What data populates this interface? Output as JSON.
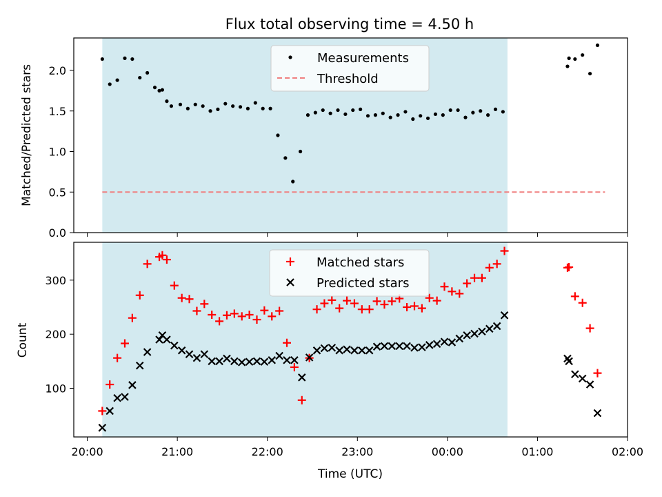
{
  "title": "Flux total observing time = 4.50 h",
  "xlabel": "Time (UTC)",
  "x_tick_labels": [
    "20:00",
    "21:00",
    "22:00",
    "23:00",
    "00:00",
    "01:00",
    "02:00"
  ],
  "colors": {
    "shade": "#d3eaf0",
    "measurement": "#000000",
    "threshold": "#f08080",
    "matched": "#ff0000",
    "predicted": "#000000"
  },
  "chart_data": [
    {
      "type": "scatter",
      "ylabel": "Matched/Predicted stars",
      "ylim": [
        0,
        2.4
      ],
      "y_ticks": [
        0.0,
        0.5,
        1.0,
        1.5,
        2.0
      ],
      "y_tick_labels": [
        "0.0",
        "0.5",
        "1.0",
        "1.5",
        "2.0"
      ],
      "xlim": [
        "19:51",
        "02:00"
      ],
      "shaded_interval": [
        "20:10",
        "00:40"
      ],
      "legend_position": "upper center",
      "legend": [
        "Measurements",
        "Threshold"
      ],
      "threshold": {
        "name": "Threshold",
        "value": 0.5,
        "x_range": [
          "20:10",
          "01:45"
        ]
      },
      "series": [
        {
          "name": "Measurements",
          "x": [
            "20:10",
            "20:15",
            "20:20",
            "20:25",
            "20:30",
            "20:35",
            "20:40",
            "20:45",
            "20:48",
            "20:50",
            "20:53",
            "20:56",
            "21:02",
            "21:07",
            "21:12",
            "21:17",
            "21:22",
            "21:27",
            "21:32",
            "21:37",
            "21:42",
            "21:47",
            "21:52",
            "21:57",
            "22:02",
            "22:07",
            "22:12",
            "22:17",
            "22:22",
            "22:27",
            "22:32",
            "22:37",
            "22:42",
            "22:47",
            "22:52",
            "22:57",
            "23:02",
            "23:07",
            "23:12",
            "23:17",
            "23:22",
            "23:27",
            "23:32",
            "23:37",
            "23:42",
            "23:47",
            "23:52",
            "23:57",
            "00:02",
            "00:07",
            "00:12",
            "00:17",
            "00:22",
            "00:27",
            "00:32",
            "00:37",
            "01:20",
            "01:21",
            "01:25",
            "01:30",
            "01:35",
            "01:40"
          ],
          "y": [
            2.14,
            1.83,
            1.88,
            2.15,
            2.14,
            1.91,
            1.97,
            1.79,
            1.75,
            1.76,
            1.62,
            1.56,
            1.58,
            1.53,
            1.58,
            1.56,
            1.5,
            1.52,
            1.59,
            1.56,
            1.55,
            1.53,
            1.6,
            1.53,
            1.53,
            1.2,
            0.92,
            0.63,
            1.0,
            1.45,
            1.48,
            1.51,
            1.47,
            1.51,
            1.46,
            1.51,
            1.52,
            1.44,
            1.45,
            1.47,
            1.42,
            1.45,
            1.49,
            1.4,
            1.44,
            1.41,
            1.46,
            1.45,
            1.51,
            1.51,
            1.42,
            1.48,
            1.5,
            1.45,
            1.52,
            1.49,
            2.05,
            2.15,
            2.14,
            2.19,
            1.96,
            2.31
          ]
        }
      ]
    },
    {
      "type": "scatter",
      "ylabel": "Count",
      "ylim": [
        10,
        370
      ],
      "y_ticks": [
        100,
        200,
        300
      ],
      "y_tick_labels": [
        "100",
        "200",
        "300"
      ],
      "xlim": [
        "19:51",
        "02:00"
      ],
      "shaded_interval": [
        "20:10",
        "00:40"
      ],
      "legend_position": "upper center",
      "legend": [
        "Matched stars",
        "Predicted stars"
      ],
      "series": [
        {
          "name": "Matched stars",
          "marker": "+",
          "x": [
            "20:10",
            "20:15",
            "20:20",
            "20:25",
            "20:30",
            "20:35",
            "20:40",
            "20:48",
            "20:50",
            "20:53",
            "20:58",
            "21:03",
            "21:08",
            "21:13",
            "21:18",
            "21:23",
            "21:28",
            "21:33",
            "21:38",
            "21:43",
            "21:48",
            "21:53",
            "21:58",
            "22:03",
            "22:08",
            "22:13",
            "22:18",
            "22:23",
            "22:28",
            "22:33",
            "22:38",
            "22:43",
            "22:48",
            "22:53",
            "22:58",
            "23:03",
            "23:08",
            "23:13",
            "23:18",
            "23:23",
            "23:28",
            "23:33",
            "23:38",
            "23:43",
            "23:48",
            "23:53",
            "23:58",
            "00:03",
            "00:08",
            "00:13",
            "00:18",
            "00:23",
            "00:28",
            "00:33",
            "00:38",
            "01:20",
            "01:21",
            "01:25",
            "01:30",
            "01:35",
            "01:40"
          ],
          "y": [
            58,
            107,
            156,
            183,
            230,
            272,
            330,
            343,
            346,
            338,
            290,
            267,
            265,
            243,
            256,
            236,
            224,
            235,
            238,
            233,
            236,
            227,
            244,
            233,
            243,
            184,
            139,
            78,
            156,
            246,
            257,
            263,
            248,
            262,
            257,
            246,
            246,
            261,
            255,
            261,
            266,
            250,
            252,
            248,
            267,
            262,
            288,
            279,
            275,
            294,
            304,
            304,
            323,
            330,
            354,
            323,
            324,
            270,
            258,
            211,
            128
          ]
        },
        {
          "name": "Predicted stars",
          "marker": "x",
          "x": [
            "20:10",
            "20:15",
            "20:20",
            "20:25",
            "20:30",
            "20:35",
            "20:40",
            "20:48",
            "20:50",
            "20:53",
            "20:58",
            "21:03",
            "21:08",
            "21:13",
            "21:18",
            "21:23",
            "21:28",
            "21:33",
            "21:38",
            "21:43",
            "21:48",
            "21:53",
            "21:58",
            "22:03",
            "22:08",
            "22:13",
            "22:18",
            "22:23",
            "22:28",
            "22:33",
            "22:38",
            "22:43",
            "22:48",
            "22:53",
            "22:58",
            "23:03",
            "23:08",
            "23:13",
            "23:18",
            "23:23",
            "23:28",
            "23:33",
            "23:38",
            "23:43",
            "23:48",
            "23:53",
            "23:58",
            "00:03",
            "00:08",
            "00:13",
            "00:18",
            "00:23",
            "00:28",
            "00:33",
            "00:38",
            "01:20",
            "01:21",
            "01:25",
            "01:30",
            "01:35",
            "01:40"
          ],
          "y": [
            27,
            58,
            82,
            84,
            106,
            142,
            167,
            190,
            198,
            190,
            179,
            170,
            163,
            156,
            163,
            150,
            150,
            155,
            150,
            148,
            149,
            150,
            149,
            152,
            160,
            152,
            152,
            120,
            157,
            170,
            174,
            175,
            170,
            172,
            170,
            170,
            170,
            177,
            178,
            178,
            178,
            178,
            175,
            176,
            180,
            182,
            186,
            185,
            192,
            198,
            201,
            205,
            210,
            215,
            235,
            155,
            150,
            126,
            118,
            107,
            54
          ]
        }
      ]
    }
  ]
}
